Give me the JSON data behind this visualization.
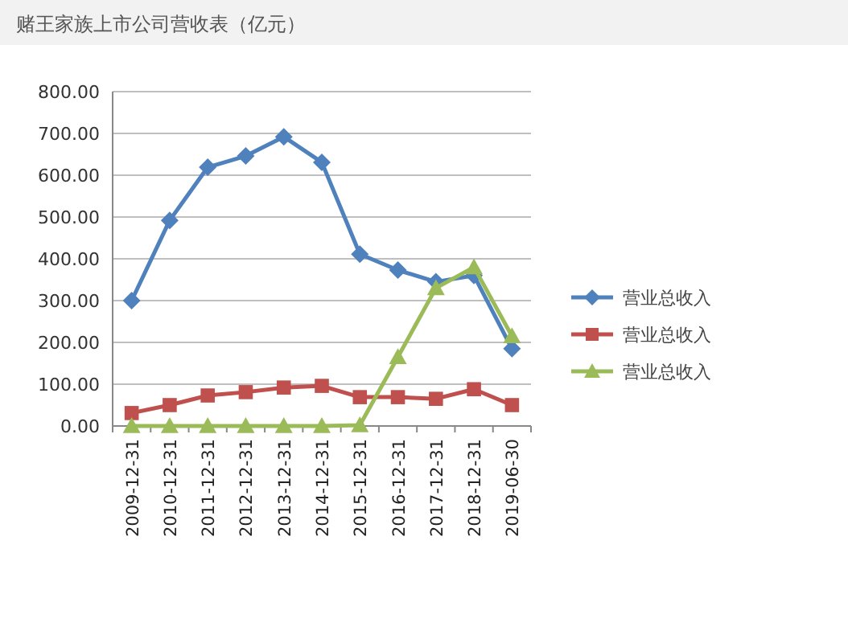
{
  "chart_data": {
    "type": "line",
    "title": "赌王家族上市公司营收表（亿元）",
    "categories": [
      "2009-12-31",
      "2010-12-31",
      "2011-12-31",
      "2012-12-31",
      "2013-12-31",
      "2014-12-31",
      "2015-12-31",
      "2016-12-31",
      "2017-12-31",
      "2018-12-31",
      "2019-06-30"
    ],
    "series": [
      {
        "name": "营业总收入",
        "color": "#4f81bd",
        "marker": "diamond",
        "values": [
          300,
          492,
          619,
          646,
          692,
          631,
          411,
          373,
          345,
          360,
          185
        ]
      },
      {
        "name": "营业总收入",
        "color": "#c0504d",
        "marker": "square",
        "values": [
          31,
          50,
          73,
          81,
          92,
          96,
          69,
          69,
          65,
          88,
          50
        ]
      },
      {
        "name": "营业总收入",
        "color": "#9bbb59",
        "marker": "triangle",
        "values": [
          0,
          0,
          0,
          0,
          0,
          0,
          2,
          165,
          330,
          380,
          215
        ]
      }
    ],
    "ylim": [
      0,
      800
    ],
    "yticks": [
      {
        "value": 0,
        "label": "0.00"
      },
      {
        "value": 100,
        "label": "100.00"
      },
      {
        "value": 200,
        "label": "200.00"
      },
      {
        "value": 300,
        "label": "300.00"
      },
      {
        "value": 400,
        "label": "400.00"
      },
      {
        "value": 500,
        "label": "500.00"
      },
      {
        "value": 600,
        "label": "600.00"
      },
      {
        "value": 700,
        "label": "700.00"
      },
      {
        "value": 800,
        "label": "800.00"
      }
    ],
    "grid": "y",
    "legend": "right"
  }
}
